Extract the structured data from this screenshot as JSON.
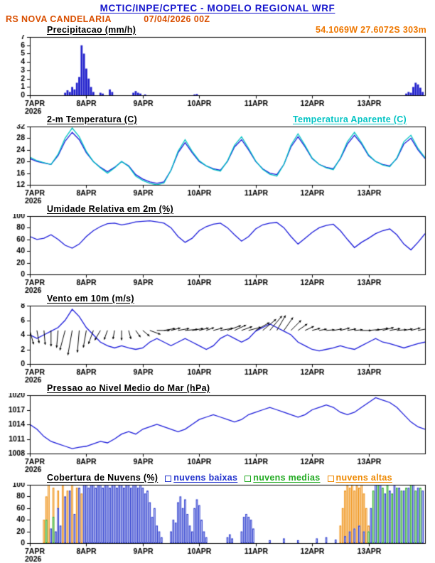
{
  "header": {
    "line1": "MCTIC/INPE/CPTEC - MODELO REGIONAL WRF",
    "station": "RS NOVA CANDELARIA",
    "run": "07/04/2026 00Z",
    "coords": "54.1069W 27.6072S 303m"
  },
  "colors": {
    "header": "#1414cc",
    "station": "#d94f00",
    "coords": "#ee7700",
    "cyan": "#00c3c3",
    "line_blue": "#1a1ad9",
    "bar_blue": "#2222cc",
    "black": "#000000"
  },
  "x_axis": {
    "days": [
      "7APR",
      "8APR",
      "9APR",
      "10APR",
      "11APR",
      "12APR",
      "13APR"
    ],
    "year": "2026",
    "hours_total": 168,
    "tick_hours": [
      0,
      24,
      48,
      72,
      96,
      120,
      144
    ]
  },
  "chart_data": [
    {
      "type": "bar",
      "title": "Precipitacao (mm/h)",
      "ylim": [
        0,
        7
      ],
      "yticks": [
        0,
        1,
        2,
        3,
        4,
        5,
        6,
        7
      ],
      "bar_color": "#2222cc",
      "points": [
        [
          15,
          0.3
        ],
        [
          16,
          0.6
        ],
        [
          17,
          0.4
        ],
        [
          18,
          1.0
        ],
        [
          19,
          0.7
        ],
        [
          20,
          1.5
        ],
        [
          21,
          2.2
        ],
        [
          22,
          6.0
        ],
        [
          23,
          5.0
        ],
        [
          24,
          3.2
        ],
        [
          25,
          2.0
        ],
        [
          26,
          1.0
        ],
        [
          27,
          0.4
        ],
        [
          30,
          0.3
        ],
        [
          31,
          0.2
        ],
        [
          34,
          0.7
        ],
        [
          35,
          0.4
        ],
        [
          44,
          0.3
        ],
        [
          45,
          0.5
        ],
        [
          46,
          0.3
        ],
        [
          47,
          0.2
        ],
        [
          49,
          0.1
        ],
        [
          70,
          0.1
        ],
        [
          71,
          0.15
        ],
        [
          160,
          0.2
        ],
        [
          161,
          0.4
        ],
        [
          162,
          0.3
        ],
        [
          163,
          1.0
        ],
        [
          164,
          1.5
        ],
        [
          165,
          1.3
        ],
        [
          166,
          0.9
        ],
        [
          167,
          0.4
        ]
      ]
    },
    {
      "type": "line",
      "title": "2-m Temperatura (C)",
      "title_right": "Temperatura Aparente (C)",
      "ylim": [
        12,
        32
      ],
      "yticks": [
        12,
        16,
        20,
        24,
        28,
        32
      ],
      "step_hours": 3,
      "series": [
        {
          "name": "2-m Temperatura (C)",
          "color": "#1a1ad9",
          "values": [
            21,
            20,
            19.5,
            19,
            22,
            27,
            30,
            27.5,
            23,
            20,
            18,
            16.5,
            18,
            20,
            18.5,
            15.5,
            14,
            13,
            12.5,
            13,
            17,
            23,
            26.5,
            23,
            20,
            18.5,
            17.5,
            17,
            20,
            25,
            27.5,
            24,
            20,
            17.5,
            16,
            15.5,
            19,
            25,
            28.5,
            25,
            21,
            19,
            18,
            17.5,
            21,
            26,
            29,
            26,
            22,
            20,
            19,
            18.5,
            21,
            26,
            28,
            24,
            21
          ]
        },
        {
          "name": "Temperatura Aparente (C)",
          "color": "#00c3c3",
          "values": [
            21.5,
            20.3,
            19.6,
            19,
            22.5,
            28,
            31.5,
            28.5,
            23.5,
            20,
            17.8,
            16,
            17.8,
            20,
            18.3,
            15,
            13.5,
            12.5,
            12,
            12.6,
            17,
            23.5,
            27.5,
            23.5,
            20.3,
            18.5,
            17.3,
            16.7,
            20.2,
            25.6,
            28.5,
            24.5,
            20.2,
            17.3,
            15.6,
            15,
            19,
            25.6,
            29.5,
            25.5,
            21.2,
            19,
            17.8,
            17.2,
            21.2,
            26.8,
            30,
            26.5,
            22.3,
            20,
            18.8,
            18.2,
            21.2,
            26.8,
            29,
            24.5,
            21.3
          ]
        }
      ]
    },
    {
      "type": "line",
      "title": "Umidade Relativa em 2m (%)",
      "ylim": [
        0,
        100
      ],
      "yticks": [
        0,
        20,
        40,
        60,
        80,
        100
      ],
      "step_hours": 3,
      "series": [
        {
          "name": "Umidade Relativa em 2m (%)",
          "color": "#1a1ad9",
          "values": [
            65,
            60,
            62,
            68,
            60,
            50,
            45,
            52,
            65,
            75,
            82,
            87,
            88,
            85,
            87,
            90,
            91,
            92,
            90,
            88,
            80,
            65,
            55,
            62,
            75,
            82,
            86,
            88,
            80,
            68,
            57,
            65,
            78,
            85,
            88,
            89,
            80,
            65,
            52,
            62,
            72,
            80,
            84,
            86,
            75,
            60,
            46,
            55,
            62,
            70,
            75,
            78,
            68,
            52,
            42,
            55,
            70
          ]
        }
      ]
    },
    {
      "type": "line",
      "title": "Vento em 10m (m/s)",
      "ylim": [
        0,
        8
      ],
      "yticks": [
        0,
        2,
        4,
        6,
        8
      ],
      "step_hours": 3,
      "series": [
        {
          "name": "Vento em 10m (m/s)",
          "color": "#1a1ad9",
          "values": [
            4,
            3.5,
            4,
            4.5,
            5,
            6,
            7.5,
            6.5,
            5,
            4,
            3,
            2.5,
            2.2,
            2.5,
            2.2,
            2,
            2.2,
            3,
            3.5,
            3,
            2.5,
            3,
            3.5,
            3,
            2.5,
            2,
            2.5,
            3.5,
            4,
            3.5,
            3,
            3.5,
            4.5,
            5,
            5.5,
            5,
            4.5,
            4,
            3,
            2.5,
            2,
            1.8,
            2,
            2.2,
            2.5,
            2.2,
            2,
            2.5,
            3,
            3.5,
            3,
            2.8,
            2.5,
            2.2,
            2.5,
            2.8,
            3
          ]
        }
      ],
      "arrows": {
        "anchor": 4.6,
        "color": "#000000",
        "angles": [
          -75,
          -80,
          -85,
          -90,
          -95,
          -105,
          -100,
          -95,
          -100,
          -110,
          -120,
          -110,
          -100,
          -90,
          -75,
          -55,
          -40,
          -20,
          0,
          10,
          15,
          10,
          5,
          10,
          15,
          20,
          15,
          10,
          20,
          25,
          20,
          15,
          30,
          40,
          50,
          60,
          55,
          45,
          35,
          25,
          15,
          10,
          5,
          10,
          15,
          10,
          5,
          0,
          5,
          10,
          15,
          10,
          5,
          10,
          15,
          10,
          5
        ]
      }
    },
    {
      "type": "line",
      "title": "Pressao ao Nivel Medio do Mar (hPa)",
      "ylim": [
        1008,
        1020
      ],
      "yticks": [
        1008,
        1011,
        1014,
        1017,
        1020
      ],
      "step_hours": 3,
      "series": [
        {
          "name": "Pressao ao Nivel Medio do Mar (hPa)",
          "color": "#1a1ad9",
          "values": [
            1014,
            1013,
            1011.5,
            1010.5,
            1010,
            1009.5,
            1009,
            1009.3,
            1009.5,
            1010,
            1010.5,
            1010.2,
            1011,
            1012,
            1012.5,
            1012,
            1013,
            1013.5,
            1014,
            1013.5,
            1013,
            1012.5,
            1013,
            1014,
            1015,
            1015.5,
            1016,
            1015.5,
            1015,
            1014.5,
            1015,
            1016,
            1016.5,
            1017,
            1017.5,
            1017,
            1016.5,
            1016,
            1015.5,
            1016,
            1017,
            1017.5,
            1018,
            1017.5,
            1016.5,
            1016,
            1016.5,
            1017.5,
            1018.5,
            1019.5,
            1019,
            1018.5,
            1017.5,
            1016,
            1014.5,
            1013.5,
            1013
          ]
        }
      ]
    },
    {
      "type": "cloudbars",
      "title": "Cobertura de Nuvens (%)",
      "ylim": [
        0,
        100
      ],
      "yticks": [
        0,
        20,
        40,
        60,
        80,
        100
      ],
      "series": [
        {
          "name": "nuvens baixas",
          "color": "#2233cc",
          "points": [
            [
              9,
              25
            ],
            [
              11,
              20
            ],
            [
              12,
              60
            ],
            [
              13,
              30
            ],
            [
              15,
              80
            ],
            [
              17,
              90
            ],
            [
              19,
              50
            ],
            [
              21,
              95
            ],
            [
              23,
              100
            ],
            [
              24,
              100
            ],
            [
              25,
              95
            ],
            [
              26,
              100
            ],
            [
              27,
              100
            ],
            [
              28,
              95
            ],
            [
              29,
              100
            ],
            [
              30,
              100
            ],
            [
              31,
              95
            ],
            [
              32,
              100
            ],
            [
              33,
              100
            ],
            [
              34,
              95
            ],
            [
              35,
              100
            ],
            [
              36,
              100
            ],
            [
              37,
              95
            ],
            [
              38,
              100
            ],
            [
              39,
              100
            ],
            [
              40,
              95
            ],
            [
              41,
              100
            ],
            [
              42,
              100
            ],
            [
              43,
              95
            ],
            [
              44,
              100
            ],
            [
              45,
              100
            ],
            [
              46,
              95
            ],
            [
              47,
              100
            ],
            [
              48,
              95
            ],
            [
              49,
              85
            ],
            [
              50,
              90
            ],
            [
              51,
              70
            ],
            [
              52,
              45
            ],
            [
              53,
              60
            ],
            [
              54,
              30
            ],
            [
              55,
              20
            ],
            [
              56,
              10
            ],
            [
              60,
              20
            ],
            [
              61,
              40
            ],
            [
              62,
              35
            ],
            [
              63,
              70
            ],
            [
              64,
              80
            ],
            [
              65,
              60
            ],
            [
              66,
              75
            ],
            [
              67,
              50
            ],
            [
              68,
              30
            ],
            [
              69,
              20
            ],
            [
              70,
              60
            ],
            [
              71,
              75
            ],
            [
              72,
              65
            ],
            [
              73,
              40
            ],
            [
              74,
              20
            ],
            [
              75,
              10
            ],
            [
              84,
              10
            ],
            [
              85,
              15
            ],
            [
              86,
              8
            ],
            [
              90,
              20
            ],
            [
              91,
              45
            ],
            [
              92,
              50
            ],
            [
              93,
              45
            ],
            [
              94,
              40
            ],
            [
              95,
              25
            ],
            [
              102,
              5
            ],
            [
              108,
              8
            ],
            [
              114,
              5
            ],
            [
              122,
              8
            ],
            [
              126,
              10
            ],
            [
              130,
              6
            ],
            [
              134,
              12
            ],
            [
              136,
              20
            ],
            [
              138,
              25
            ],
            [
              140,
              30
            ],
            [
              142,
              20
            ],
            [
              145,
              60
            ],
            [
              147,
              100
            ],
            [
              149,
              100
            ],
            [
              151,
              85
            ],
            [
              153,
              90
            ],
            [
              155,
              100
            ],
            [
              157,
              95
            ],
            [
              159,
              90
            ],
            [
              161,
              95
            ],
            [
              163,
              100
            ],
            [
              165,
              95
            ],
            [
              167,
              90
            ]
          ]
        },
        {
          "name": "nuvens medias",
          "color": "#22aa22",
          "points": [
            [
              7,
              40
            ],
            [
              10,
              45
            ],
            [
              144,
              20
            ],
            [
              146,
              90
            ],
            [
              148,
              100
            ],
            [
              150,
              95
            ],
            [
              152,
              100
            ],
            [
              154,
              85
            ],
            [
              156,
              95
            ],
            [
              158,
              90
            ],
            [
              160,
              95
            ],
            [
              162,
              100
            ],
            [
              164,
              90
            ],
            [
              166,
              95
            ]
          ]
        },
        {
          "name": "nuvens altas",
          "color": "#ee8800",
          "points": [
            [
              6,
              40
            ],
            [
              7,
              80
            ],
            [
              8,
              100
            ],
            [
              10,
              95
            ],
            [
              12,
              90
            ],
            [
              14,
              100
            ],
            [
              16,
              90
            ],
            [
              18,
              100
            ],
            [
              20,
              95
            ],
            [
              22,
              85
            ],
            [
              24,
              30
            ],
            [
              132,
              30
            ],
            [
              133,
              60
            ],
            [
              134,
              90
            ],
            [
              135,
              100
            ],
            [
              136,
              95
            ],
            [
              137,
              100
            ],
            [
              138,
              90
            ],
            [
              139,
              100
            ],
            [
              140,
              95
            ],
            [
              141,
              100
            ],
            [
              142,
              85
            ],
            [
              143,
              60
            ],
            [
              144,
              30
            ]
          ]
        }
      ]
    }
  ]
}
